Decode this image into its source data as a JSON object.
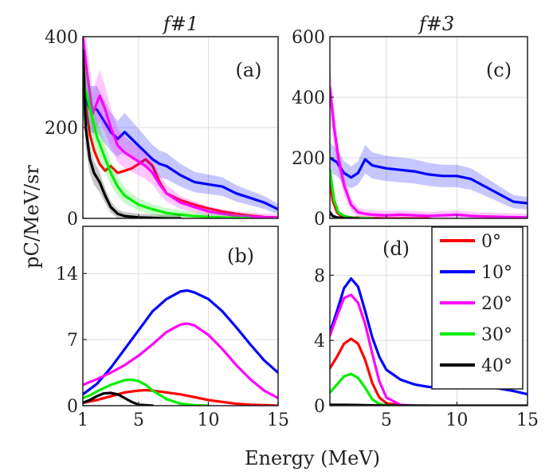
{
  "figure": {
    "ylabel": "pC/MeV/sr",
    "xlabel": "Energy (MeV)"
  },
  "chart_data": [
    {
      "panel": "(a)",
      "title": "f#1",
      "type": "line",
      "xlim": [
        1,
        15
      ],
      "ylim": [
        0,
        400
      ],
      "xticks": [
        1,
        5,
        10,
        15
      ],
      "yticks": [
        0,
        200,
        400
      ],
      "xticklabels": [
        "",
        "",
        "",
        ""
      ],
      "yticklabels": [
        "0",
        "200",
        "400"
      ],
      "grid": true,
      "series": [
        {
          "name": "0°",
          "color": "#ff0000",
          "x": [
            1,
            1.2,
            1.5,
            1.8,
            2.2,
            2.6,
            3,
            3.5,
            4,
            4.5,
            5,
            5.5,
            6,
            6.5,
            7,
            8,
            9,
            10,
            11,
            12,
            13,
            14,
            15
          ],
          "y": [
            380,
            250,
            185,
            150,
            120,
            105,
            115,
            100,
            105,
            110,
            120,
            130,
            115,
            80,
            55,
            40,
            30,
            22,
            15,
            10,
            6,
            3,
            2
          ]
        },
        {
          "name": "10°",
          "color": "#0000ff",
          "band": true,
          "x": [
            1,
            1.5,
            2,
            2.5,
            3,
            3.5,
            4,
            4.5,
            5,
            5.5,
            6,
            6.5,
            7,
            8,
            9,
            10,
            11,
            12,
            13,
            14,
            15
          ],
          "y": [
            280,
            240,
            240,
            215,
            190,
            175,
            190,
            175,
            160,
            145,
            130,
            120,
            115,
            95,
            80,
            75,
            70,
            55,
            45,
            35,
            20
          ]
        },
        {
          "name": "20°",
          "color": "#ff00ff",
          "band": true,
          "x": [
            1,
            1.3,
            1.7,
            2.2,
            2.6,
            3,
            3.5,
            4,
            4.5,
            5,
            5.5,
            6,
            6.5,
            7,
            8,
            9,
            10,
            11,
            12,
            13,
            14,
            15
          ],
          "y": [
            400,
            320,
            230,
            270,
            240,
            200,
            160,
            145,
            135,
            125,
            115,
            100,
            75,
            55,
            35,
            25,
            15,
            10,
            6,
            4,
            2,
            1
          ]
        },
        {
          "name": "30°",
          "color": "#00ee00",
          "band": true,
          "x": [
            1,
            1.3,
            1.6,
            2,
            2.5,
            3,
            3.5,
            4,
            4.5,
            5,
            6,
            7,
            8,
            9,
            10,
            11,
            12,
            13
          ],
          "y": [
            300,
            270,
            230,
            180,
            140,
            100,
            70,
            50,
            40,
            30,
            20,
            12,
            8,
            5,
            3,
            2,
            1,
            0
          ]
        },
        {
          "name": "40°",
          "color": "#000000",
          "band": true,
          "x": [
            1,
            1.2,
            1.5,
            1.8,
            2.2,
            2.6,
            3,
            3.5,
            4,
            5,
            6,
            7,
            8
          ],
          "y": [
            370,
            200,
            130,
            100,
            80,
            50,
            25,
            10,
            5,
            2,
            1,
            0,
            0
          ]
        }
      ]
    },
    {
      "panel": "(b)",
      "type": "line",
      "xlim": [
        1,
        15
      ],
      "ylim": [
        0,
        19
      ],
      "xticks": [
        1,
        5,
        10,
        15
      ],
      "yticks": [
        0,
        7,
        14
      ],
      "xticklabels": [
        "1",
        "5",
        "10",
        "15"
      ],
      "yticklabels": [
        "0",
        "7",
        "14"
      ],
      "grid": true,
      "series": [
        {
          "name": "0°",
          "color": "#ff0000",
          "x": [
            1,
            2,
            3,
            4,
            5,
            5.5,
            6,
            7,
            8,
            9,
            10,
            11,
            12,
            13,
            14,
            15
          ],
          "y": [
            0.3,
            0.6,
            1.0,
            1.4,
            1.6,
            1.65,
            1.6,
            1.4,
            1.2,
            0.9,
            0.6,
            0.4,
            0.2,
            0.1,
            0.05,
            0
          ]
        },
        {
          "name": "10°",
          "color": "#0000ff",
          "x": [
            1,
            2,
            3,
            4,
            5,
            6,
            7,
            8,
            8.5,
            9,
            10,
            11,
            12,
            13,
            14,
            15
          ],
          "y": [
            1.2,
            2.3,
            4,
            6,
            8,
            10,
            11.3,
            12.1,
            12.2,
            12,
            11.3,
            10,
            8.3,
            6.5,
            4.8,
            3.5
          ]
        },
        {
          "name": "20°",
          "color": "#ff00ff",
          "x": [
            1,
            2,
            3,
            4,
            5,
            6,
            7,
            8,
            8.5,
            9,
            10,
            11,
            12,
            13,
            14,
            15
          ],
          "y": [
            2.2,
            2.8,
            3.5,
            4.3,
            5.3,
            6.5,
            7.8,
            8.6,
            8.7,
            8.5,
            7.5,
            6,
            4.3,
            2.8,
            1.6,
            0.8
          ]
        },
        {
          "name": "30°",
          "color": "#00ee00",
          "x": [
            1,
            1.5,
            2,
            3,
            4,
            4.5,
            5,
            5.5,
            6,
            7,
            8,
            9,
            10
          ],
          "y": [
            0.8,
            1.1,
            1.5,
            2.2,
            2.7,
            2.75,
            2.6,
            2.2,
            1.6,
            0.7,
            0.2,
            0.05,
            0
          ]
        },
        {
          "name": "40°",
          "color": "#000000",
          "x": [
            1,
            1.5,
            2,
            2.5,
            3,
            3.5,
            4,
            4.5,
            5,
            6
          ],
          "y": [
            0.3,
            0.6,
            1.0,
            1.3,
            1.35,
            1.2,
            0.8,
            0.4,
            0.1,
            0
          ]
        }
      ]
    },
    {
      "panel": "(c)",
      "title": "f#3",
      "type": "line",
      "xlim": [
        1,
        15
      ],
      "ylim": [
        0,
        600
      ],
      "xticks": [
        1,
        5,
        10,
        15
      ],
      "yticks": [
        0,
        200,
        400,
        600
      ],
      "xticklabels": [
        "",
        "",
        "",
        ""
      ],
      "yticklabels": [
        "0",
        "200",
        "400",
        "600"
      ],
      "grid": true,
      "series": [
        {
          "name": "0°",
          "color": "#ff0000",
          "x": [
            1,
            1.2,
            1.5,
            1.8,
            2.2,
            3,
            4,
            5,
            6,
            8
          ],
          "y": [
            130,
            60,
            20,
            8,
            3,
            2,
            1,
            0,
            0,
            0
          ]
        },
        {
          "name": "10°",
          "color": "#0000ff",
          "band": true,
          "x": [
            1,
            1.5,
            2,
            2.5,
            3,
            3.5,
            4,
            4.5,
            5,
            6,
            7,
            8,
            9,
            10,
            11,
            12,
            13,
            14,
            15
          ],
          "y": [
            200,
            185,
            150,
            135,
            150,
            195,
            175,
            170,
            165,
            160,
            155,
            145,
            140,
            140,
            130,
            105,
            80,
            55,
            50
          ]
        },
        {
          "name": "20°",
          "color": "#ff00ff",
          "band": true,
          "x": [
            1,
            1.3,
            1.6,
            2,
            2.5,
            3,
            3.5,
            4,
            5,
            6,
            7,
            8,
            9,
            10,
            11,
            12,
            13,
            14,
            15
          ],
          "y": [
            430,
            300,
            200,
            110,
            45,
            20,
            15,
            12,
            10,
            12,
            10,
            8,
            10,
            12,
            8,
            6,
            5,
            4,
            3
          ]
        },
        {
          "name": "30°",
          "color": "#00ee00",
          "x": [
            1,
            1.3,
            1.6,
            2,
            2.5,
            3,
            4
          ],
          "y": [
            160,
            60,
            20,
            8,
            3,
            1,
            0
          ]
        },
        {
          "name": "40°",
          "color": "#000000",
          "x": [
            1,
            1.2,
            1.5,
            2,
            3
          ],
          "y": [
            20,
            8,
            3,
            1,
            0
          ]
        }
      ]
    },
    {
      "panel": "(d)",
      "type": "line",
      "xlim": [
        1,
        15
      ],
      "ylim": [
        0,
        11
      ],
      "xticks": [
        1,
        5,
        10,
        15
      ],
      "yticks": [
        0,
        4,
        8
      ],
      "xticklabels": [
        "",
        "5",
        "10",
        "15"
      ],
      "yticklabels": [
        "0",
        "4",
        "8"
      ],
      "grid": true,
      "series": [
        {
          "name": "0°",
          "color": "#ff0000",
          "x": [
            1,
            1.5,
            2,
            2.5,
            3,
            3.5,
            4,
            4.5,
            5,
            6,
            7,
            8
          ],
          "y": [
            2.3,
            3,
            3.8,
            4.1,
            3.8,
            2.8,
            1.4,
            0.5,
            0.15,
            0.02,
            0,
            0
          ]
        },
        {
          "name": "10°",
          "color": "#0000ff",
          "x": [
            1,
            1.5,
            2,
            2.5,
            3,
            3.5,
            4,
            4.5,
            5,
            6,
            7,
            8,
            9,
            10,
            11,
            12,
            13,
            14,
            15
          ],
          "y": [
            4.5,
            5.8,
            7.2,
            7.8,
            7.3,
            5.8,
            4.2,
            3.0,
            2.2,
            1.6,
            1.3,
            1.15,
            1.1,
            1.15,
            1.25,
            1.2,
            1.05,
            0.9,
            0.7
          ]
        },
        {
          "name": "20°",
          "color": "#ff00ff",
          "x": [
            1,
            1.5,
            2,
            2.5,
            3,
            3.5,
            4,
            4.5,
            5,
            6,
            7
          ],
          "y": [
            4.3,
            5.5,
            6.6,
            6.8,
            6.3,
            5.0,
            3.2,
            1.5,
            0.5,
            0.05,
            0
          ]
        },
        {
          "name": "30°",
          "color": "#00ee00",
          "x": [
            1,
            1.5,
            2,
            2.5,
            3,
            3.5,
            4,
            4.5,
            5,
            6
          ],
          "y": [
            0.8,
            1.3,
            1.8,
            1.95,
            1.7,
            1.1,
            0.4,
            0.1,
            0.02,
            0
          ]
        },
        {
          "name": "40°",
          "color": "#000000",
          "x": [
            1,
            2,
            3,
            4,
            5,
            6,
            15
          ],
          "y": [
            0.05,
            0.05,
            0.04,
            0.02,
            0,
            0,
            0
          ]
        }
      ]
    }
  ],
  "legend": {
    "location": "top-right of panel (d)",
    "entries": [
      {
        "label": "0°",
        "color": "#ff0000"
      },
      {
        "label": "10°",
        "color": "#0000ff"
      },
      {
        "label": "20°",
        "color": "#ff00ff"
      },
      {
        "label": "30°",
        "color": "#00ee00"
      },
      {
        "label": "40°",
        "color": "#000000"
      }
    ]
  }
}
